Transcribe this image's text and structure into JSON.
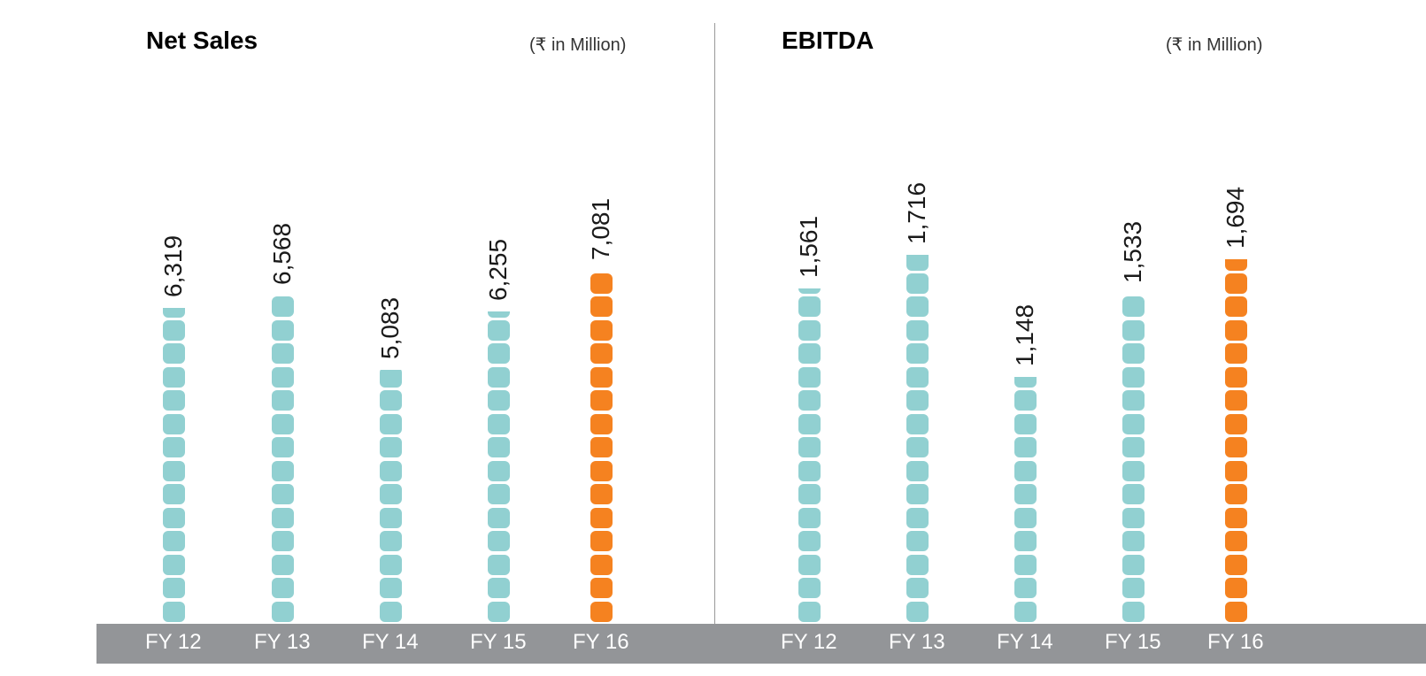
{
  "chart_data": [
    {
      "type": "bar",
      "title": "Net Sales",
      "unit": "(₹ in Million)",
      "categories": [
        "FY 12",
        "FY 13",
        "FY 14",
        "FY 15",
        "FY 16"
      ],
      "values": [
        6319,
        6568,
        5083,
        6255,
        7081
      ],
      "value_labels": [
        "6,319",
        "6,568",
        "5,083",
        "6,255",
        "7,081"
      ],
      "highlight_index": 4,
      "ylim": [
        0,
        11800
      ]
    },
    {
      "type": "bar",
      "title": "EBITDA",
      "unit": "(₹ in Million)",
      "categories": [
        "FY 12",
        "FY 13",
        "FY 14",
        "FY 15",
        "FY 16"
      ],
      "values": [
        1561,
        1716,
        1148,
        1533,
        1694
      ],
      "value_labels": [
        "1,561",
        "1,716",
        "1,148",
        "1,533",
        "1,694"
      ],
      "highlight_index": 4,
      "ylim": [
        0,
        2740
      ]
    }
  ],
  "colors": {
    "bar": "#91d0d1",
    "highlight": "#f58220",
    "title": "#f58220",
    "axis_band": "#939598",
    "axis_text": "#ffffff",
    "divider": "#9a9a9a"
  }
}
